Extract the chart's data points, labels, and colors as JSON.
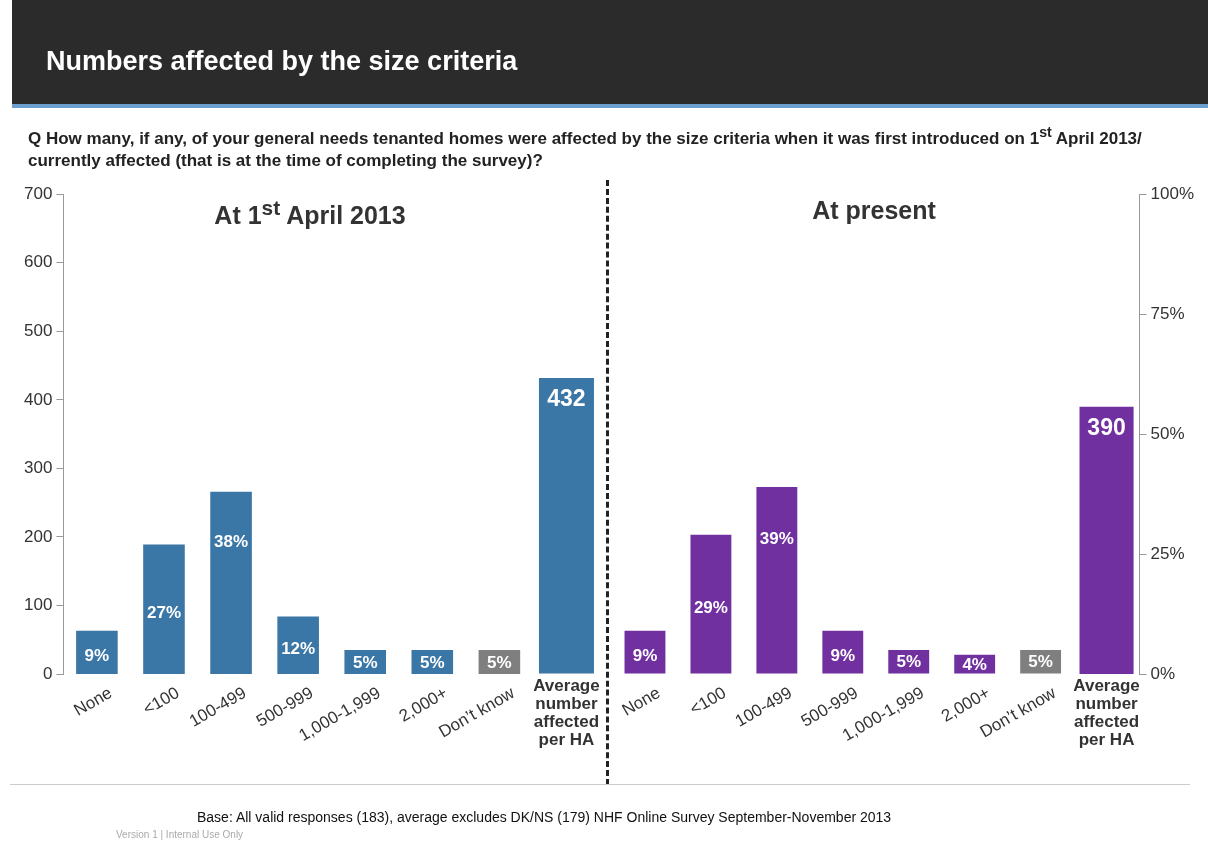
{
  "chart_data": [
    {
      "type": "bar",
      "title": "At 1$^{st}$ April 2013",
      "categories": [
        "None",
        "<100",
        "100-499",
        "500-999",
        "1,000-1,999",
        "2,000+",
        "Don’t know",
        "Average number affected per HA"
      ],
      "series": [
        {
          "axis": "y2",
          "colors": [
            "#3a76a6",
            "#3a76a6",
            "#3a76a6",
            "#3a76a6",
            "#3a76a6",
            "#3a76a6",
            "#7f7f7f",
            null
          ],
          "values": [
            9,
            27,
            38,
            12,
            5,
            5,
            5,
            null
          ],
          "value_labels": [
            "9%",
            "27%",
            "38%",
            "12%",
            "5%",
            "5%",
            "5%",
            null
          ]
        },
        {
          "axis": "y",
          "color": "#3a76a6",
          "values": [
            null,
            null,
            null,
            null,
            null,
            null,
            null,
            432
          ],
          "value_labels": [
            null,
            null,
            null,
            null,
            null,
            null,
            null,
            "432"
          ]
        }
      ],
      "ylim": [
        0,
        700
      ],
      "yticks": [
        0,
        100,
        200,
        300,
        400,
        500,
        600,
        700
      ],
      "y2lim": [
        0,
        100
      ],
      "tick_labels": [
        "x",
        "y"
      ],
      "annotations": [
        "Numbers affected by the size criteria",
        "Q  How many, if any, of your general needs tenanted homes were affected by the size criteria when it was first introduced on 1$^{st}$ April 2013/ currently affected (that is at the time of completing the survey)?",
        "Base: All valid responses (183),  average excludes DK/NS (179) NHF Online Survey September-November 2013",
        "Version 1 | Internal Use Only"
      ]
    },
    {
      "type": "bar",
      "title": "At present",
      "categories": [
        "None",
        "<100",
        "100-499",
        "500-999",
        "1,000-1,999",
        "2,000+",
        "Don’t know",
        "Average number affected per HA"
      ],
      "series": [
        {
          "axis": "y2",
          "colors": [
            "#7030a0",
            "#7030a0",
            "#7030a0",
            "#7030a0",
            "#7030a0",
            "#7030a0",
            "#7f7f7f",
            null
          ],
          "values": [
            9,
            29,
            39,
            9,
            5,
            4,
            5,
            null
          ],
          "value_labels": [
            "9%",
            "29%",
            "39%",
            "9%",
            "5%",
            "4%",
            "5%",
            null
          ]
        },
        {
          "axis": "y",
          "color": "#7030a0",
          "values": [
            null,
            null,
            null,
            null,
            null,
            null,
            null,
            390
          ],
          "value_labels": [
            null,
            null,
            null,
            null,
            null,
            null,
            null,
            "390"
          ]
        }
      ],
      "ylim": [
        0,
        700
      ],
      "y2lim": [
        0,
        100
      ],
      "y2ticks": [
        {
          "value": 0,
          "label": "0%"
        },
        {
          "value": 25,
          "label": "25%"
        },
        {
          "value": 50,
          "label": "50%"
        },
        {
          "value": 75,
          "label": "75%"
        },
        {
          "value": 100,
          "label": "100%"
        }
      ],
      "tick_labels": [
        "x",
        "y2"
      ]
    }
  ]
}
